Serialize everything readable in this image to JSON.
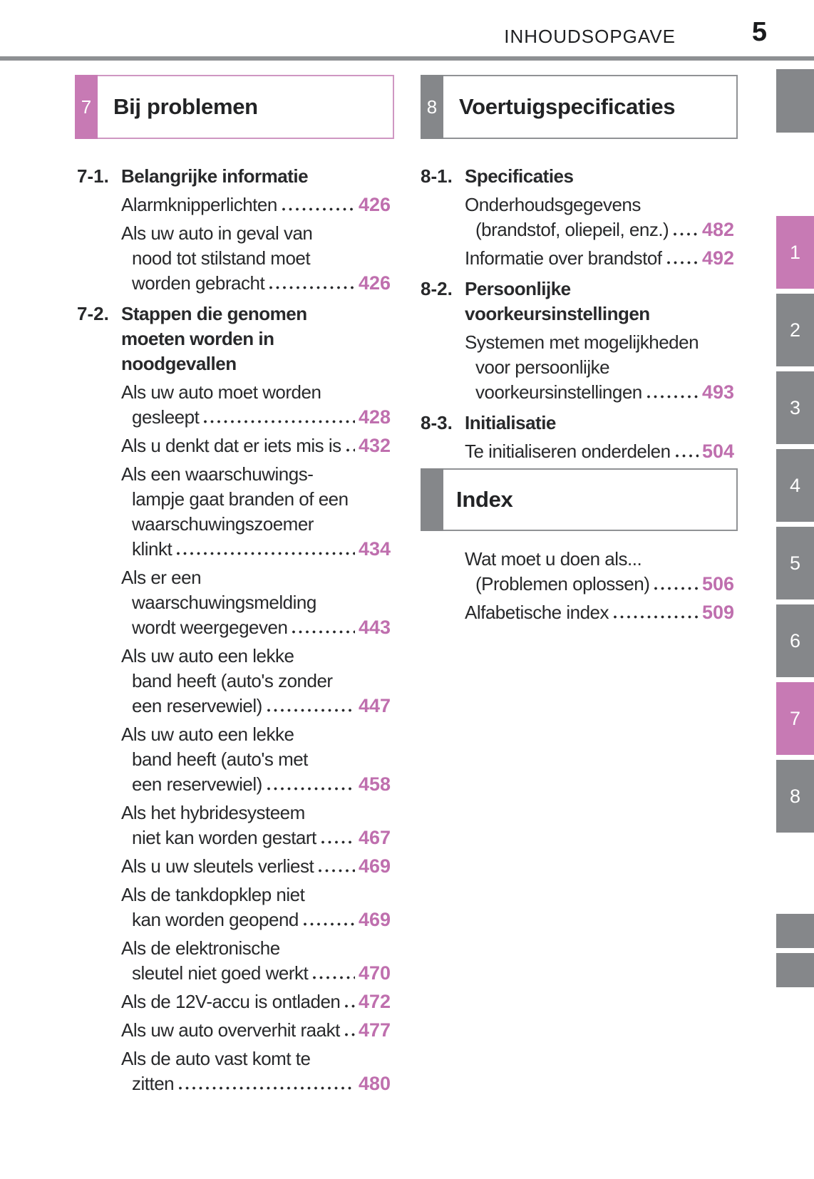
{
  "header": {
    "label": "INHOUDSOPGAVE",
    "page_number": "5"
  },
  "colors": {
    "accent_pink": "#c77ab4",
    "accent_pink_border": "#cf97c2",
    "page_number_pink": "#bf6fae",
    "tab_gray": "#85878a",
    "gray_border": "#909295",
    "rule_gray": "#8e9093",
    "text_ink": "#28292b"
  },
  "section_boxes": [
    {
      "number": "7",
      "title": "Bij problemen",
      "accent": "pink"
    },
    {
      "number": "8",
      "title": "Voertuigspecificaties",
      "accent": "gray"
    }
  ],
  "left_column": {
    "blocks": [
      {
        "type": "section",
        "number": "7-1.",
        "lines": [
          "Belangrijke informatie"
        ]
      },
      {
        "type": "entry",
        "lines": [
          "Alarmknipperlichten"
        ],
        "page": "426"
      },
      {
        "type": "entry",
        "lines": [
          "Als uw auto in geval van",
          "nood tot stilstand moet",
          "worden gebracht"
        ],
        "page": "426"
      },
      {
        "type": "section",
        "number": "7-2.",
        "lines": [
          "Stappen die genomen",
          "moeten worden in",
          "noodgevallen"
        ]
      },
      {
        "type": "entry",
        "lines": [
          "Als uw auto moet worden",
          "gesleept"
        ],
        "page": "428"
      },
      {
        "type": "entry",
        "lines": [
          "Als u denkt dat er iets mis is"
        ],
        "page": "432"
      },
      {
        "type": "entry",
        "lines": [
          "Als een waarschuwings-",
          "lampje gaat branden of een",
          "waarschuwingszoemer",
          "klinkt"
        ],
        "page": "434"
      },
      {
        "type": "entry",
        "lines": [
          "Als er een",
          "waarschuwingsmelding",
          "wordt weergegeven"
        ],
        "page": "443"
      },
      {
        "type": "entry",
        "lines": [
          "Als uw auto een lekke",
          "band heeft (auto's zonder",
          "een reservewiel)"
        ],
        "page": "447"
      },
      {
        "type": "entry",
        "lines": [
          "Als uw auto een lekke",
          "band heeft (auto's met",
          "een reservewiel)"
        ],
        "page": "458"
      },
      {
        "type": "entry",
        "lines": [
          "Als het hybridesysteem",
          "niet kan worden gestart"
        ],
        "page": "467"
      },
      {
        "type": "entry",
        "lines": [
          "Als u uw sleutels verliest"
        ],
        "page": "469"
      },
      {
        "type": "entry",
        "lines": [
          "Als de tankdopklep niet",
          "kan worden geopend"
        ],
        "page": "469"
      },
      {
        "type": "entry",
        "lines": [
          "Als de elektronische",
          "sleutel niet goed werkt"
        ],
        "page": "470"
      },
      {
        "type": "entry",
        "lines": [
          "Als de 12V-accu is ontladen"
        ],
        "page": "472"
      },
      {
        "type": "entry",
        "lines": [
          "Als uw auto oververhit raakt"
        ],
        "page": "477"
      },
      {
        "type": "entry",
        "lines": [
          "Als de auto vast komt te",
          "zitten"
        ],
        "page": "480"
      }
    ]
  },
  "right_column": {
    "blocks": [
      {
        "type": "section",
        "number": "8-1.",
        "lines": [
          "Specificaties"
        ]
      },
      {
        "type": "entry",
        "lines": [
          "Onderhoudsgegevens",
          "(brandstof, oliepeil, enz.)"
        ],
        "page": "482"
      },
      {
        "type": "entry",
        "lines": [
          "Informatie over brandstof"
        ],
        "page": "492"
      },
      {
        "type": "section",
        "number": "8-2.",
        "lines": [
          "Persoonlijke",
          "voorkeursinstellingen"
        ]
      },
      {
        "type": "entry",
        "lines": [
          "Systemen met mogelijkheden",
          "voor persoonlijke",
          "voorkeursinstellingen"
        ],
        "page": "493"
      },
      {
        "type": "section",
        "number": "8-3.",
        "lines": [
          "Initialisatie"
        ]
      },
      {
        "type": "entry",
        "lines": [
          "Te initialiseren onderdelen"
        ],
        "page": "504"
      },
      {
        "type": "box",
        "title": "Index"
      },
      {
        "type": "entry",
        "lines": [
          "Wat moet u doen als...",
          "(Problemen oplossen)"
        ],
        "page": "506"
      },
      {
        "type": "entry",
        "lines": [
          "Alfabetische index"
        ],
        "page": "509"
      }
    ]
  },
  "sidebar": {
    "tabs": [
      {
        "label": "1",
        "active": true
      },
      {
        "label": "2",
        "active": false
      },
      {
        "label": "3",
        "active": false
      },
      {
        "label": "4",
        "active": false
      },
      {
        "label": "5",
        "active": false
      },
      {
        "label": "6",
        "active": false
      },
      {
        "label": "7",
        "active": true
      },
      {
        "label": "8",
        "active": false
      }
    ]
  }
}
